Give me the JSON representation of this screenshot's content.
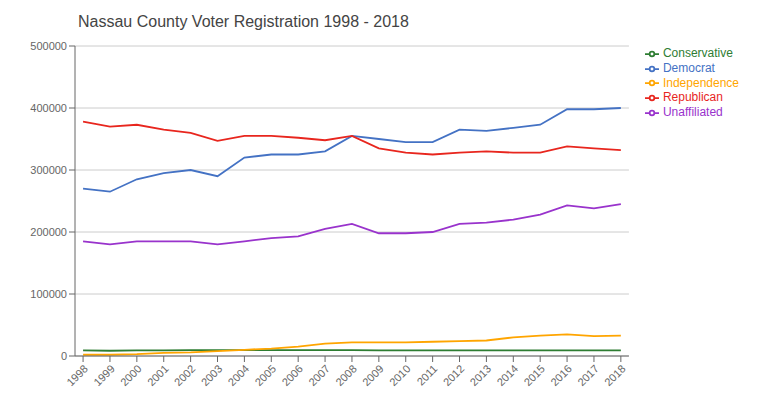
{
  "chart_data": {
    "type": "line",
    "title": "Nassau County Voter Registration 1998 - 2018",
    "x": [
      1998,
      1999,
      2000,
      2001,
      2002,
      2003,
      2004,
      2005,
      2006,
      2007,
      2008,
      2009,
      2010,
      2011,
      2012,
      2013,
      2014,
      2015,
      2016,
      2017,
      2018
    ],
    "series": [
      {
        "name": "Democrat",
        "color": "#4472C4",
        "values": [
          270000,
          265000,
          285000,
          295000,
          300000,
          290000,
          320000,
          325000,
          325000,
          330000,
          355000,
          350000,
          345000,
          345000,
          365000,
          363000,
          368000,
          373000,
          398000,
          398000,
          400000
        ]
      },
      {
        "name": "Republican",
        "color": "#E8261E",
        "values": [
          378000,
          370000,
          373000,
          365000,
          360000,
          347000,
          355000,
          355000,
          352000,
          348000,
          355000,
          335000,
          328000,
          325000,
          328000,
          330000,
          328000,
          328000,
          338000,
          335000,
          332000
        ]
      },
      {
        "name": "Conservative",
        "color": "#2E7D32",
        "values": [
          9000,
          8500,
          9000,
          9000,
          9500,
          9500,
          9500,
          9500,
          9500,
          9500,
          9500,
          9000,
          9000,
          9000,
          9000,
          9000,
          9000,
          9000,
          9000,
          9000,
          9000
        ]
      },
      {
        "name": "Independence",
        "color": "#FFA500",
        "values": [
          2000,
          2000,
          3000,
          5000,
          6000,
          8000,
          10000,
          12000,
          15000,
          20000,
          22000,
          22000,
          22000,
          23000,
          24000,
          25000,
          30000,
          33000,
          35000,
          32000,
          33000
        ]
      },
      {
        "name": "Unaffiliated",
        "color": "#9933CC",
        "values": [
          185000,
          180000,
          185000,
          185000,
          185000,
          180000,
          185000,
          190000,
          193000,
          205000,
          213000,
          198000,
          198000,
          200000,
          213000,
          215000,
          220000,
          228000,
          243000,
          238000,
          245000
        ]
      }
    ],
    "xlim": [
      1997.7,
      2018.3
    ],
    "xticks": [
      1998,
      1999,
      2000,
      2001,
      2002,
      2003,
      2004,
      2005,
      2006,
      2007,
      2008,
      2009,
      2010,
      2011,
      2012,
      2013,
      2014,
      2015,
      2016,
      2017,
      2018
    ],
    "ylim": [
      0,
      500000
    ],
    "yticks": [
      0,
      100000,
      200000,
      300000,
      400000,
      500000
    ],
    "grid": true,
    "legend": "right"
  }
}
